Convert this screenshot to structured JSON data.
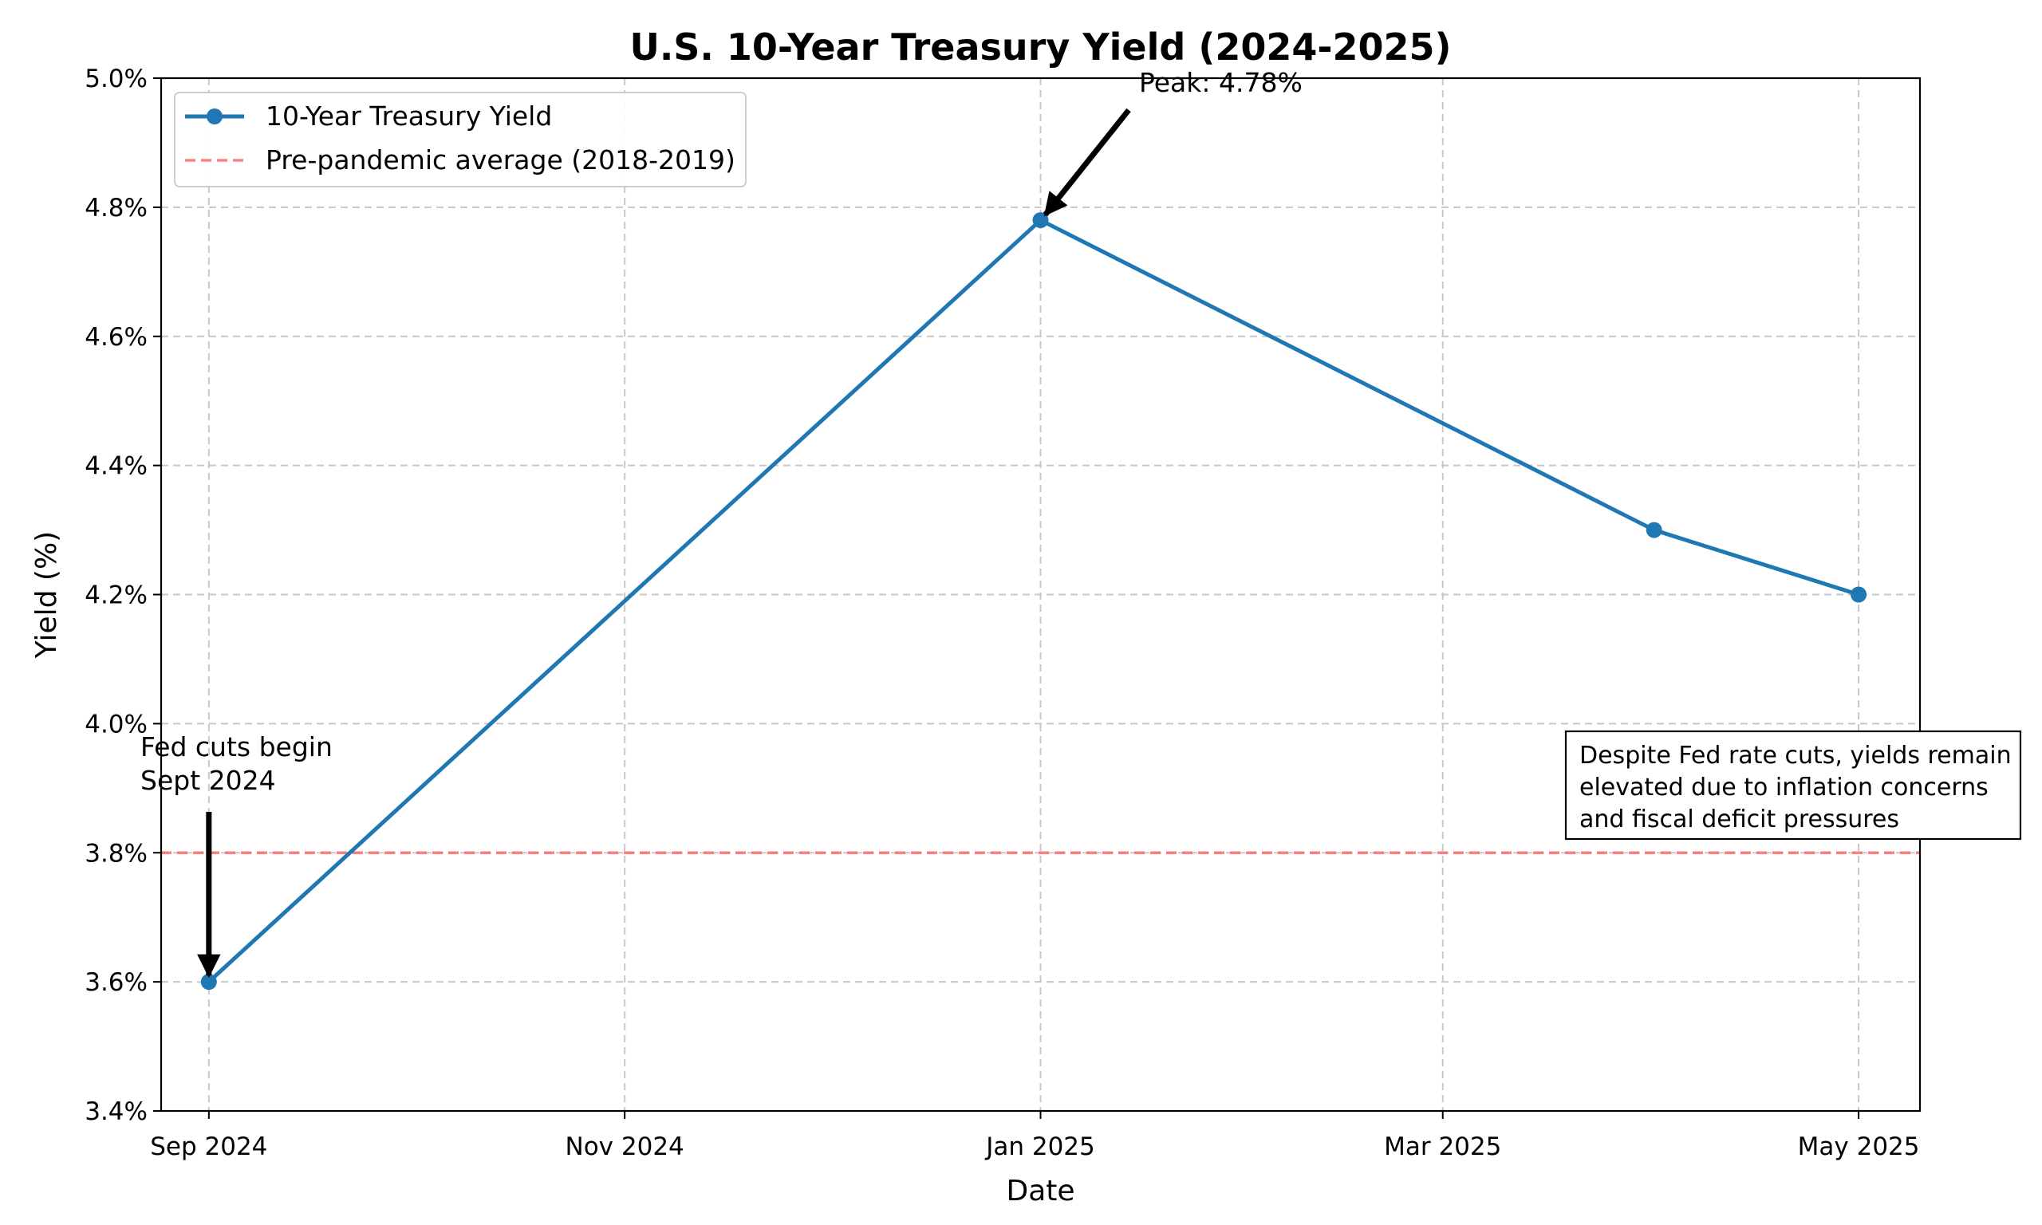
{
  "chart_data": {
    "type": "line",
    "title": "U.S. 10-Year Treasury Yield (2024-2025)",
    "xlabel": "Date",
    "ylabel": "Yield (%)",
    "ylim": [
      3.4,
      5.0
    ],
    "xlim": [
      "2024-08-25",
      "2025-05-10"
    ],
    "yticks": [
      3.4,
      3.6,
      3.8,
      4.0,
      4.2,
      4.4,
      4.6,
      4.8,
      5.0
    ],
    "yticklabels": [
      "3.4%",
      "3.6%",
      "3.8%",
      "4.0%",
      "4.2%",
      "4.4%",
      "4.6%",
      "4.8%",
      "5.0%"
    ],
    "xticks": [
      "2024-09-01",
      "2024-11-01",
      "2025-01-01",
      "2025-03-01",
      "2025-05-01"
    ],
    "xticklabels": [
      "Sep 2024",
      "Nov 2024",
      "Jan 2025",
      "Mar 2025",
      "May 2025"
    ],
    "grid": true,
    "legend_position": "upper-left",
    "series": [
      {
        "name": "10-Year Treasury Yield",
        "color": "#1f77b4",
        "style": "solid-with-markers",
        "x": [
          "2024-09-01",
          "2025-01-01",
          "2025-04-01",
          "2025-05-01"
        ],
        "y": [
          3.6,
          4.78,
          4.3,
          4.2
        ]
      }
    ],
    "reference_lines": [
      {
        "name": "Pre-pandemic average (2018-2019)",
        "y": 3.8,
        "color": "#ff6b6b",
        "style": "dashed"
      }
    ],
    "annotations": {
      "peak": {
        "text": "Peak: 4.78%",
        "x": "2025-01-01",
        "y": 4.78
      },
      "fed_cuts": {
        "line1": "Fed cuts begin",
        "line2": "Sept 2024",
        "x": "2024-09-01",
        "y": 3.6
      },
      "note": {
        "lines": [
          "Despite Fed rate cuts, yields remain",
          "elevated due to inflation concerns",
          "and fiscal deficit pressures"
        ]
      }
    }
  }
}
